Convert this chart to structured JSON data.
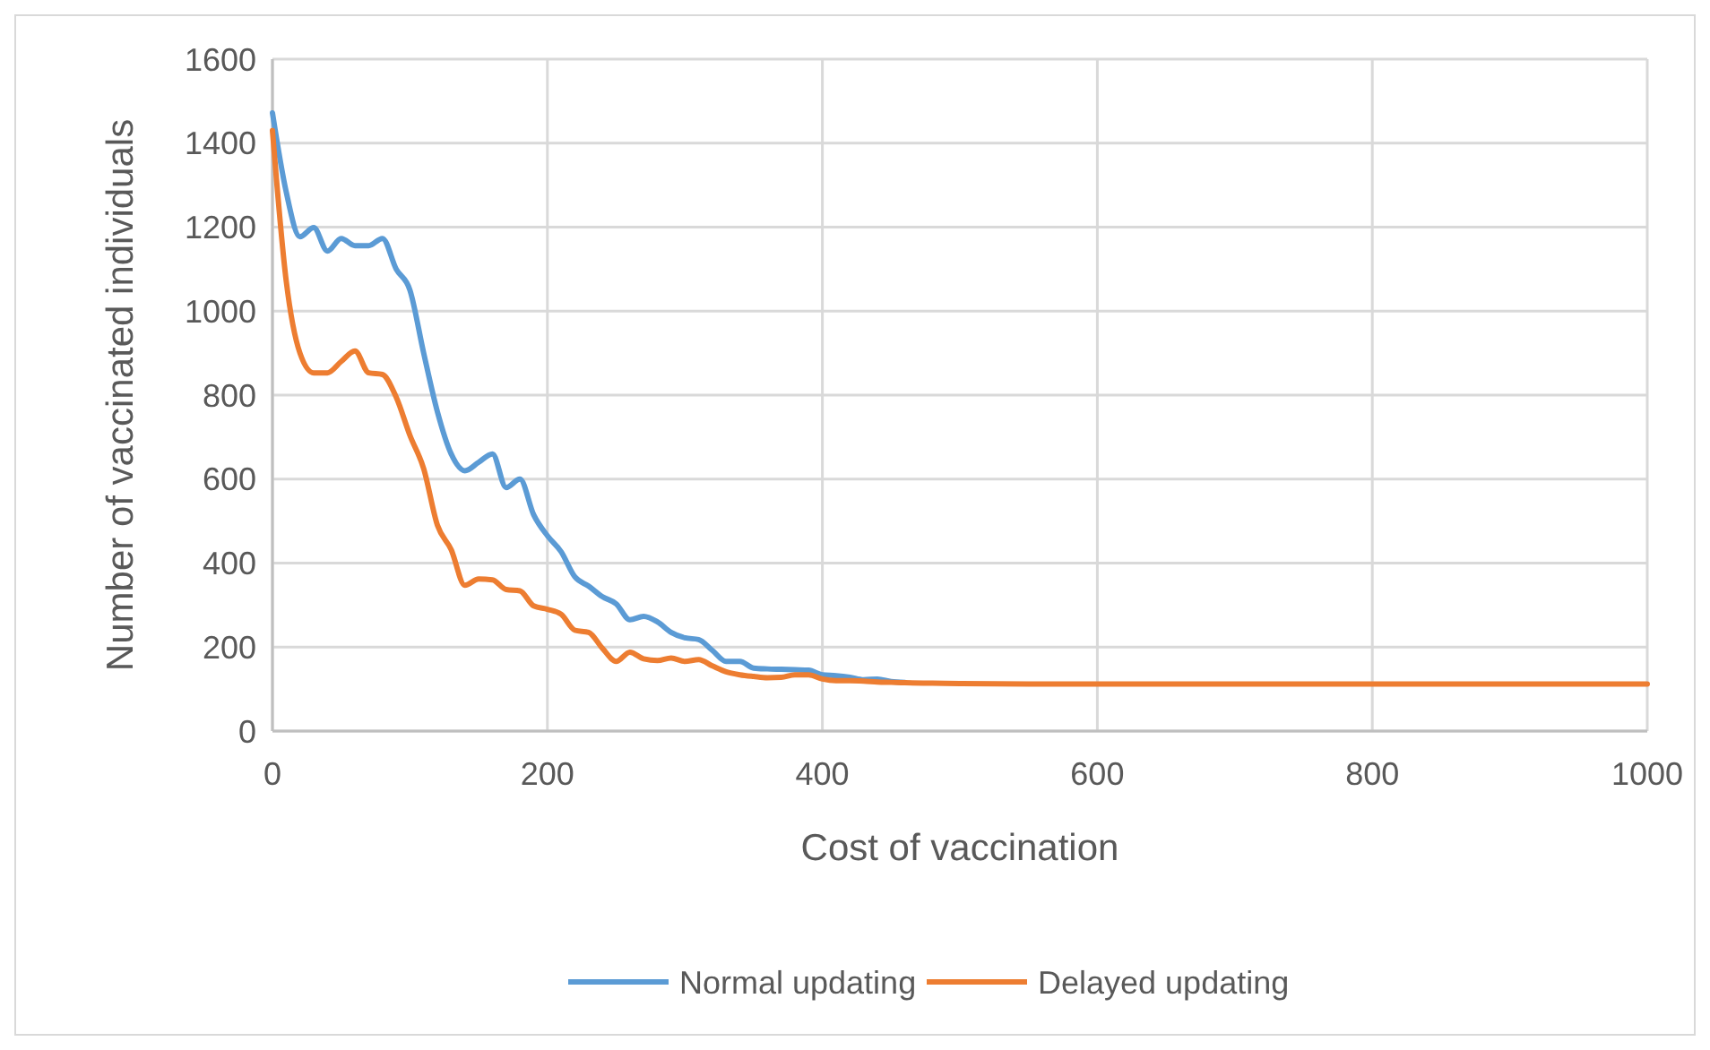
{
  "chart_data": {
    "type": "line",
    "xlabel": "Cost of vaccination",
    "ylabel": "Number of vaccinated individuals",
    "x": [
      0,
      10,
      20,
      30,
      40,
      50,
      60,
      70,
      80,
      90,
      100,
      110,
      120,
      130,
      140,
      150,
      160,
      170,
      180,
      190,
      200,
      210,
      220,
      230,
      240,
      250,
      260,
      270,
      280,
      290,
      300,
      310,
      320,
      330,
      340,
      350,
      360,
      370,
      380,
      390,
      400,
      410,
      420,
      430,
      440,
      450,
      460,
      480,
      500,
      550,
      600,
      700,
      800,
      900,
      1000
    ],
    "series": [
      {
        "name": "Normal updating",
        "color": "#5b9bd5",
        "values": [
          1472,
          1284,
          1177,
          1199,
          1143,
          1173,
          1156,
          1156,
          1173,
          1100,
          1050,
          900,
          760,
          660,
          620,
          640,
          660,
          580,
          600,
          515,
          465,
          427,
          367,
          345,
          320,
          303,
          265,
          273,
          260,
          235,
          222,
          218,
          192,
          166,
          166,
          150,
          148,
          147,
          146,
          145,
          134,
          132,
          128,
          122,
          124,
          118,
          116,
          null,
          null,
          null,
          null,
          null,
          null,
          null,
          null
        ]
      },
      {
        "name": "Delayed updating",
        "color": "#ed7d31",
        "values": [
          1430,
          1072,
          900,
          853,
          853,
          880,
          905,
          853,
          849,
          795,
          704,
          625,
          490,
          432,
          347,
          362,
          360,
          337,
          334,
          298,
          290,
          278,
          240,
          235,
          197,
          166,
          188,
          172,
          168,
          174,
          166,
          170,
          155,
          141,
          134,
          130,
          127,
          128,
          134,
          134,
          124,
          120,
          120,
          119,
          117,
          116,
          115,
          114,
          113,
          112,
          112,
          112,
          112,
          112,
          112
        ]
      }
    ],
    "xlim": [
      0,
      1000
    ],
    "xticks": [
      0,
      200,
      400,
      600,
      800,
      1000
    ],
    "ylim": [
      0,
      1600
    ],
    "yticks": [
      0,
      200,
      400,
      600,
      800,
      1000,
      1200,
      1400,
      1600
    ],
    "grid": true,
    "legend": "bottom",
    "marker": "none",
    "line_style": "solid"
  }
}
